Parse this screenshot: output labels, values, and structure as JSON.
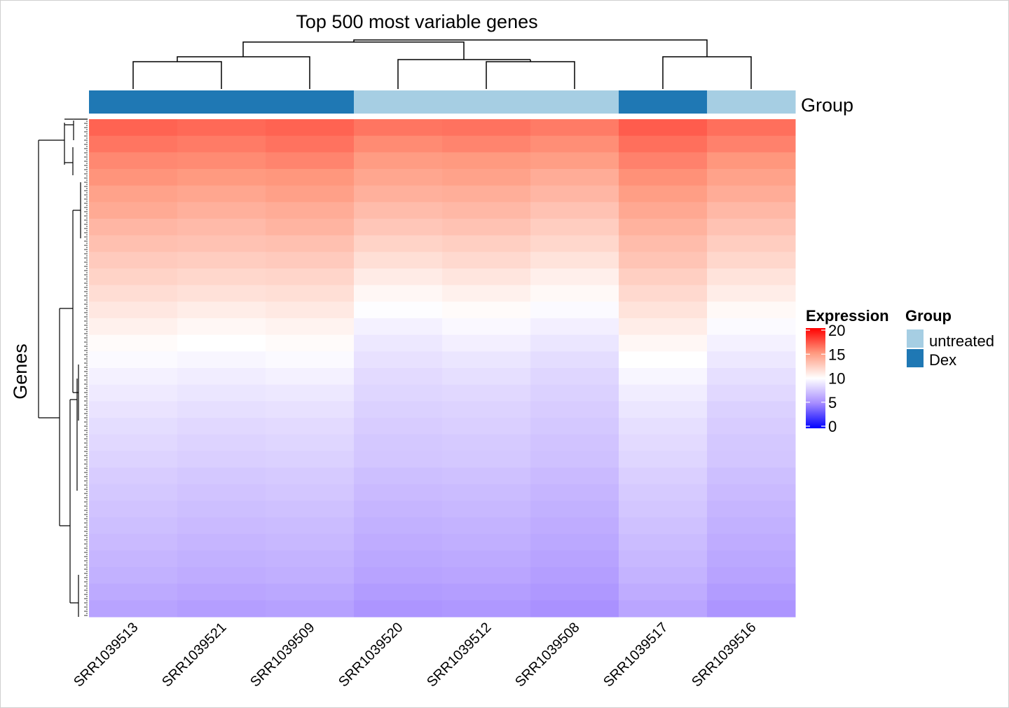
{
  "chart_data": {
    "type": "heatmap",
    "title": "Top 500 most variable genes",
    "ylabel": "Genes",
    "columns": [
      "SRR1039513",
      "SRR1039521",
      "SRR1039509",
      "SRR1039520",
      "SRR1039512",
      "SRR1039508",
      "SRR1039517",
      "SRR1039516"
    ],
    "column_groups": [
      "Dex",
      "Dex",
      "Dex",
      "untreated",
      "untreated",
      "untreated",
      "Dex",
      "untreated"
    ],
    "annotation_title": "Group",
    "legend_expression": {
      "title": "Expression",
      "ticks": [
        0,
        5,
        10,
        15,
        20
      ],
      "range": [
        0,
        20
      ],
      "colors": {
        "low": "#0000FF",
        "mid": "#FFFFFF",
        "high": "#FF0000"
      }
    },
    "legend_group": {
      "title": "Group",
      "items": [
        {
          "label": "untreated",
          "color": "#A6CEE3"
        },
        {
          "label": "Dex",
          "color": "#1F78B4"
        }
      ]
    },
    "row_bands_note_count": 500,
    "values": [
      [
        16.8,
        16.6,
        16.8,
        16.2,
        16.3,
        16.0,
        17.0,
        16.4
      ],
      [
        16.2,
        16.0,
        16.3,
        15.5,
        15.7,
        15.4,
        16.4,
        15.8
      ],
      [
        15.6,
        15.5,
        15.7,
        14.9,
        15.0,
        14.8,
        15.8,
        15.1
      ],
      [
        15.2,
        15.0,
        15.1,
        14.4,
        14.6,
        14.1,
        15.3,
        14.6
      ],
      [
        14.6,
        14.4,
        14.7,
        13.9,
        14.0,
        13.6,
        14.8,
        14.1
      ],
      [
        14.2,
        13.9,
        14.1,
        13.3,
        13.5,
        13.0,
        14.3,
        13.5
      ],
      [
        13.6,
        13.4,
        13.7,
        12.8,
        13.0,
        12.5,
        13.8,
        13.0
      ],
      [
        13.1,
        13.0,
        13.1,
        12.2,
        12.4,
        12.0,
        13.3,
        12.5
      ],
      [
        12.6,
        12.5,
        12.6,
        11.6,
        11.9,
        11.4,
        12.9,
        12.0
      ],
      [
        12.2,
        12.0,
        12.1,
        11.0,
        11.3,
        10.8,
        12.4,
        11.4
      ],
      [
        11.7,
        11.5,
        11.6,
        10.4,
        10.7,
        10.3,
        11.9,
        10.9
      ],
      [
        11.2,
        10.9,
        11.1,
        9.9,
        10.2,
        9.8,
        11.4,
        10.3
      ],
      [
        10.7,
        10.4,
        10.6,
        9.4,
        9.7,
        9.3,
        10.9,
        9.8
      ],
      [
        10.2,
        10.0,
        10.2,
        9.0,
        9.3,
        8.9,
        10.4,
        9.4
      ],
      [
        9.8,
        9.6,
        9.8,
        8.7,
        8.9,
        8.5,
        10.0,
        9.0
      ],
      [
        9.4,
        9.2,
        9.4,
        8.4,
        8.6,
        8.2,
        9.6,
        8.6
      ],
      [
        9.1,
        8.9,
        9.0,
        8.2,
        8.3,
        8.0,
        9.2,
        8.3
      ],
      [
        8.8,
        8.6,
        8.7,
        8.0,
        8.1,
        7.8,
        8.9,
        8.0
      ],
      [
        8.5,
        8.3,
        8.4,
        7.8,
        7.9,
        7.6,
        8.6,
        7.8
      ],
      [
        8.3,
        8.1,
        8.2,
        7.6,
        7.7,
        7.4,
        8.4,
        7.6
      ],
      [
        8.1,
        7.9,
        8.0,
        7.5,
        7.6,
        7.3,
        8.2,
        7.5
      ],
      [
        7.8,
        7.6,
        7.7,
        7.2,
        7.3,
        7.0,
        7.9,
        7.2
      ],
      [
        7.6,
        7.4,
        7.5,
        7.0,
        7.1,
        6.8,
        7.7,
        7.0
      ],
      [
        7.4,
        7.2,
        7.3,
        6.8,
        6.9,
        6.6,
        7.5,
        6.8
      ],
      [
        7.2,
        7.0,
        7.1,
        6.6,
        6.7,
        6.4,
        7.3,
        6.6
      ],
      [
        7.0,
        6.8,
        6.9,
        6.4,
        6.5,
        6.2,
        7.1,
        6.4
      ],
      [
        6.8,
        6.6,
        6.7,
        6.2,
        6.3,
        6.0,
        6.9,
        6.2
      ],
      [
        6.6,
        6.4,
        6.5,
        6.0,
        6.1,
        5.8,
        6.7,
        6.0
      ],
      [
        6.3,
        6.1,
        6.2,
        5.7,
        5.8,
        5.5,
        6.4,
        5.7
      ],
      [
        6.0,
        5.8,
        5.9,
        5.4,
        5.5,
        5.2,
        6.1,
        5.4
      ]
    ]
  }
}
